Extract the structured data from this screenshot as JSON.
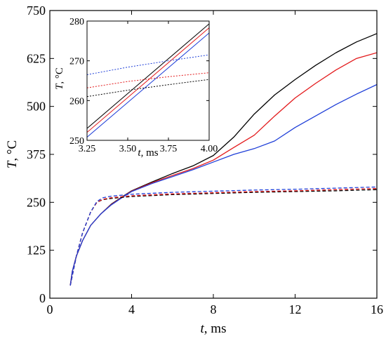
{
  "chart_data": [
    {
      "type": "line",
      "xlabel_var": "t",
      "xlabel_unit": ", ms",
      "ylabel_var": "T",
      "ylabel_unit": ", °C",
      "xlim": [
        0,
        16
      ],
      "ylim": [
        0,
        750
      ],
      "xticks": [
        0,
        4,
        8,
        12,
        16
      ],
      "yticks": [
        0,
        125,
        250,
        375,
        500,
        625,
        750
      ],
      "xtick_labels": [
        "0",
        "4",
        "8",
        "12",
        "16"
      ],
      "ytick_labels": [
        "0",
        "125",
        "250",
        "375",
        "500",
        "625",
        "750"
      ],
      "grid": false,
      "series": [
        {
          "color": "#000000",
          "style": "solid",
          "x": [
            1.0,
            1.1,
            1.3,
            1.6,
            2.0,
            2.5,
            3.0,
            3.5,
            4.0,
            5.0,
            6.0,
            7.0,
            8.0,
            9.0,
            10.0,
            11.0,
            12.0,
            13.0,
            14.0,
            15.0,
            16.0
          ],
          "y": [
            33,
            70,
            110,
            150,
            190,
            220,
            245,
            263,
            280,
            303,
            325,
            345,
            372,
            420,
            480,
            530,
            570,
            607,
            640,
            668,
            690
          ]
        },
        {
          "color": "#e31a1c",
          "style": "solid",
          "x": [
            1.0,
            1.1,
            1.3,
            1.6,
            2.0,
            2.5,
            3.0,
            3.5,
            4.0,
            5.0,
            6.0,
            7.0,
            8.0,
            9.0,
            10.0,
            11.0,
            12.0,
            13.0,
            14.0,
            15.0,
            16.0
          ],
          "y": [
            33,
            70,
            110,
            150,
            190,
            220,
            244,
            262,
            279,
            301,
            320,
            338,
            360,
            393,
            425,
            475,
            522,
            560,
            595,
            625,
            640
          ]
        },
        {
          "color": "#1f3fd8",
          "style": "solid",
          "x": [
            1.0,
            1.1,
            1.3,
            1.6,
            2.0,
            2.5,
            3.0,
            3.5,
            4.0,
            5.0,
            6.0,
            7.0,
            8.0,
            9.0,
            10.0,
            11.0,
            12.0,
            13.0,
            14.0,
            15.0,
            16.0
          ],
          "y": [
            33,
            70,
            110,
            150,
            190,
            220,
            243,
            261,
            278,
            299,
            317,
            335,
            355,
            375,
            390,
            410,
            445,
            475,
            505,
            532,
            557
          ]
        },
        {
          "color": "#000000",
          "style": "dashed",
          "x": [
            1.0,
            1.3,
            1.6,
            2.0,
            2.3,
            2.6,
            3.0,
            4.0,
            6.0,
            8.0,
            10.0,
            12.0,
            14.0,
            16.0
          ],
          "y": [
            33,
            110,
            170,
            225,
            250,
            257,
            260,
            265,
            270,
            273,
            276,
            278,
            280,
            283
          ]
        },
        {
          "color": "#e31a1c",
          "style": "dashed",
          "x": [
            1.0,
            1.3,
            1.6,
            2.0,
            2.3,
            2.6,
            3.0,
            4.0,
            6.0,
            8.0,
            10.0,
            12.0,
            14.0,
            16.0
          ],
          "y": [
            33,
            110,
            170,
            225,
            250,
            258,
            262,
            267,
            272,
            275,
            278,
            280,
            283,
            286
          ]
        },
        {
          "color": "#1f3fd8",
          "style": "dashed",
          "x": [
            1.0,
            1.3,
            1.6,
            2.0,
            2.3,
            2.6,
            3.0,
            4.0,
            6.0,
            8.0,
            10.0,
            12.0,
            14.0,
            16.0
          ],
          "y": [
            33,
            110,
            170,
            225,
            252,
            262,
            266,
            271,
            276,
            279,
            282,
            284,
            287,
            290
          ]
        }
      ]
    },
    {
      "type": "line",
      "inset": true,
      "xlabel_var": "t",
      "xlabel_unit": ", ms",
      "ylabel_var": "T",
      "ylabel_unit": ", °C",
      "xlim": [
        3.25,
        4.0
      ],
      "ylim": [
        250,
        280
      ],
      "xticks": [
        3.25,
        3.5,
        3.75,
        4.0
      ],
      "yticks": [
        250,
        260,
        270,
        280
      ],
      "xtick_labels": [
        "3.25",
        "3.50",
        "3.75",
        "4.00"
      ],
      "ytick_labels": [
        "250",
        "260",
        "270",
        "280"
      ],
      "grid": false,
      "series": [
        {
          "color": "#000000",
          "style": "solid",
          "x": [
            3.25,
            4.0
          ],
          "y": [
            253.0,
            279.3
          ]
        },
        {
          "color": "#e31a1c",
          "style": "solid",
          "x": [
            3.25,
            4.0
          ],
          "y": [
            252.0,
            278.3
          ]
        },
        {
          "color": "#1f3fd8",
          "style": "solid",
          "x": [
            3.25,
            4.0
          ],
          "y": [
            250.8,
            277.0
          ]
        },
        {
          "color": "#1f3fd8",
          "style": "dotted",
          "x": [
            3.25,
            3.5,
            3.75,
            4.0
          ],
          "y": [
            266.5,
            268.4,
            270.0,
            271.5
          ]
        },
        {
          "color": "#e31a1c",
          "style": "dotted",
          "x": [
            3.25,
            3.5,
            3.75,
            4.0
          ],
          "y": [
            263.2,
            264.8,
            266.0,
            267.0
          ]
        },
        {
          "color": "#000000",
          "style": "dotted",
          "x": [
            3.25,
            3.5,
            3.75,
            4.0
          ],
          "y": [
            261.0,
            262.6,
            264.0,
            265.3
          ]
        }
      ]
    }
  ]
}
